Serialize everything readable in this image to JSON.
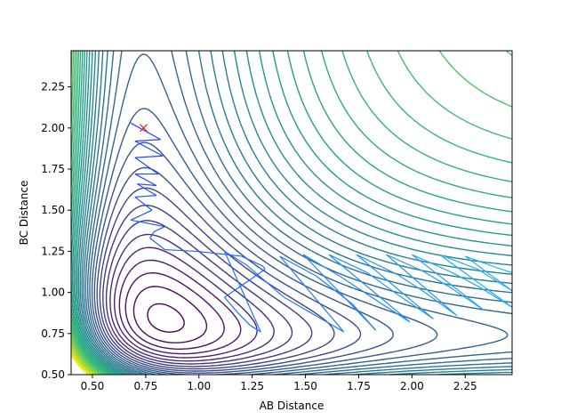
{
  "chart_data": {
    "type": "contour",
    "title": "",
    "xlabel": "AB Distance",
    "ylabel": "BC Distance",
    "xlim": [
      0.4,
      2.47
    ],
    "ylim": [
      0.5,
      2.47
    ],
    "xticks": [
      "0.50",
      "0.75",
      "1.00",
      "1.25",
      "1.50",
      "1.75",
      "2.00",
      "2.25"
    ],
    "yticks": [
      "0.50",
      "0.75",
      "1.00",
      "1.25",
      "1.50",
      "1.75",
      "2.00",
      "2.25"
    ],
    "grid": false,
    "legend": "none",
    "colormap": "viridis",
    "contour_levels": 40,
    "surface": {
      "a_min": 0.74,
      "dissociation_energy": 1.0,
      "morse_beta": 2.0
    },
    "start_marker": {
      "x": 0.74,
      "y": 2.0,
      "symbol": "x",
      "color": "#d62728"
    },
    "trajectory": {
      "color": "#1f3fff",
      "color_end": "#22b8f0",
      "points": [
        [
          0.68,
          2.03
        ],
        [
          0.82,
          1.93
        ],
        [
          0.7,
          1.92
        ],
        [
          0.83,
          1.83
        ],
        [
          0.7,
          1.82
        ],
        [
          0.81,
          1.72
        ],
        [
          0.7,
          1.72
        ],
        [
          0.8,
          1.65
        ],
        [
          0.71,
          1.66
        ],
        [
          0.8,
          1.59
        ],
        [
          0.7,
          1.58
        ],
        [
          0.78,
          1.5
        ],
        [
          0.68,
          1.44
        ],
        [
          0.84,
          1.4
        ],
        [
          0.79,
          1.37
        ],
        [
          0.77,
          1.33
        ],
        [
          0.84,
          1.26
        ],
        [
          0.99,
          1.25
        ],
        [
          1.2,
          1.22
        ],
        [
          1.3,
          1.16
        ],
        [
          1.31,
          1.14
        ],
        [
          1.12,
          0.97
        ],
        [
          1.18,
          0.88
        ],
        [
          1.24,
          0.8
        ],
        [
          1.29,
          0.76
        ],
        [
          1.12,
          1.25
        ],
        [
          1.22,
          1.17
        ],
        [
          1.4,
          0.97
        ],
        [
          1.56,
          0.85
        ],
        [
          1.68,
          0.76
        ],
        [
          1.38,
          1.22
        ],
        [
          1.55,
          1.1
        ],
        [
          1.72,
          0.93
        ],
        [
          1.83,
          0.77
        ],
        [
          1.49,
          1.23
        ],
        [
          1.66,
          1.1
        ],
        [
          1.8,
          0.98
        ],
        [
          1.99,
          0.82
        ],
        [
          1.61,
          1.23
        ],
        [
          1.79,
          1.12
        ],
        [
          1.94,
          0.98
        ],
        [
          2.1,
          0.84
        ],
        [
          1.74,
          1.23
        ],
        [
          1.93,
          1.11
        ],
        [
          2.05,
          1.01
        ],
        [
          2.21,
          0.86
        ],
        [
          1.88,
          1.23
        ],
        [
          2.05,
          1.13
        ],
        [
          2.18,
          1.03
        ],
        [
          2.34,
          0.89
        ],
        [
          2.0,
          1.23
        ],
        [
          2.19,
          1.12
        ],
        [
          2.32,
          1.03
        ],
        [
          2.47,
          0.91
        ],
        [
          2.13,
          1.23
        ],
        [
          2.31,
          1.14
        ],
        [
          2.42,
          1.05
        ],
        [
          2.47,
          1.01
        ],
        [
          2.25,
          1.22
        ],
        [
          2.4,
          1.15
        ],
        [
          2.47,
          1.12
        ]
      ]
    }
  }
}
